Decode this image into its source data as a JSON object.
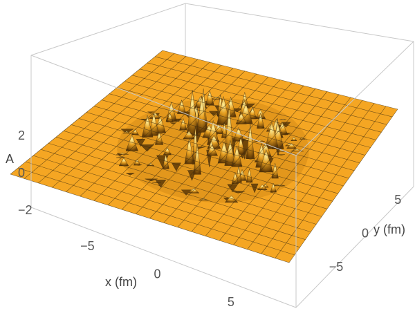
{
  "chart_data": {
    "type": "surface3d",
    "title": "",
    "xlabel": "x (fm)",
    "ylabel": "y (fm)",
    "zlabel": "A",
    "xlim": [
      -9,
      9
    ],
    "ylim": [
      -9,
      9
    ],
    "zlim": [
      -2.5,
      2.5
    ],
    "x_ticks": [
      {
        "value": -5,
        "label": "−5"
      },
      {
        "value": 0,
        "label": "0"
      },
      {
        "value": 5,
        "label": "5"
      }
    ],
    "y_ticks": [
      {
        "value": -5,
        "label": "−5"
      },
      {
        "value": 0,
        "label": "0"
      },
      {
        "value": 5,
        "label": "5"
      }
    ],
    "z_ticks": [
      {
        "value": 2,
        "label": "2"
      },
      {
        "value": 0,
        "label": "0"
      },
      {
        "value": -2,
        "label": "−2"
      }
    ],
    "surface_description": "flat plane at A = 0 with fluctuating spikes concentrated inside radius ~6 fm around the origin",
    "fluctuation_region_radius_fm": 6,
    "max_amplitude": 2.5,
    "mesh_lines": 20,
    "surface_color": "#f5a623",
    "mesh_color": "#3a2a10",
    "box_color": "#c8c8c8",
    "grid": false
  }
}
